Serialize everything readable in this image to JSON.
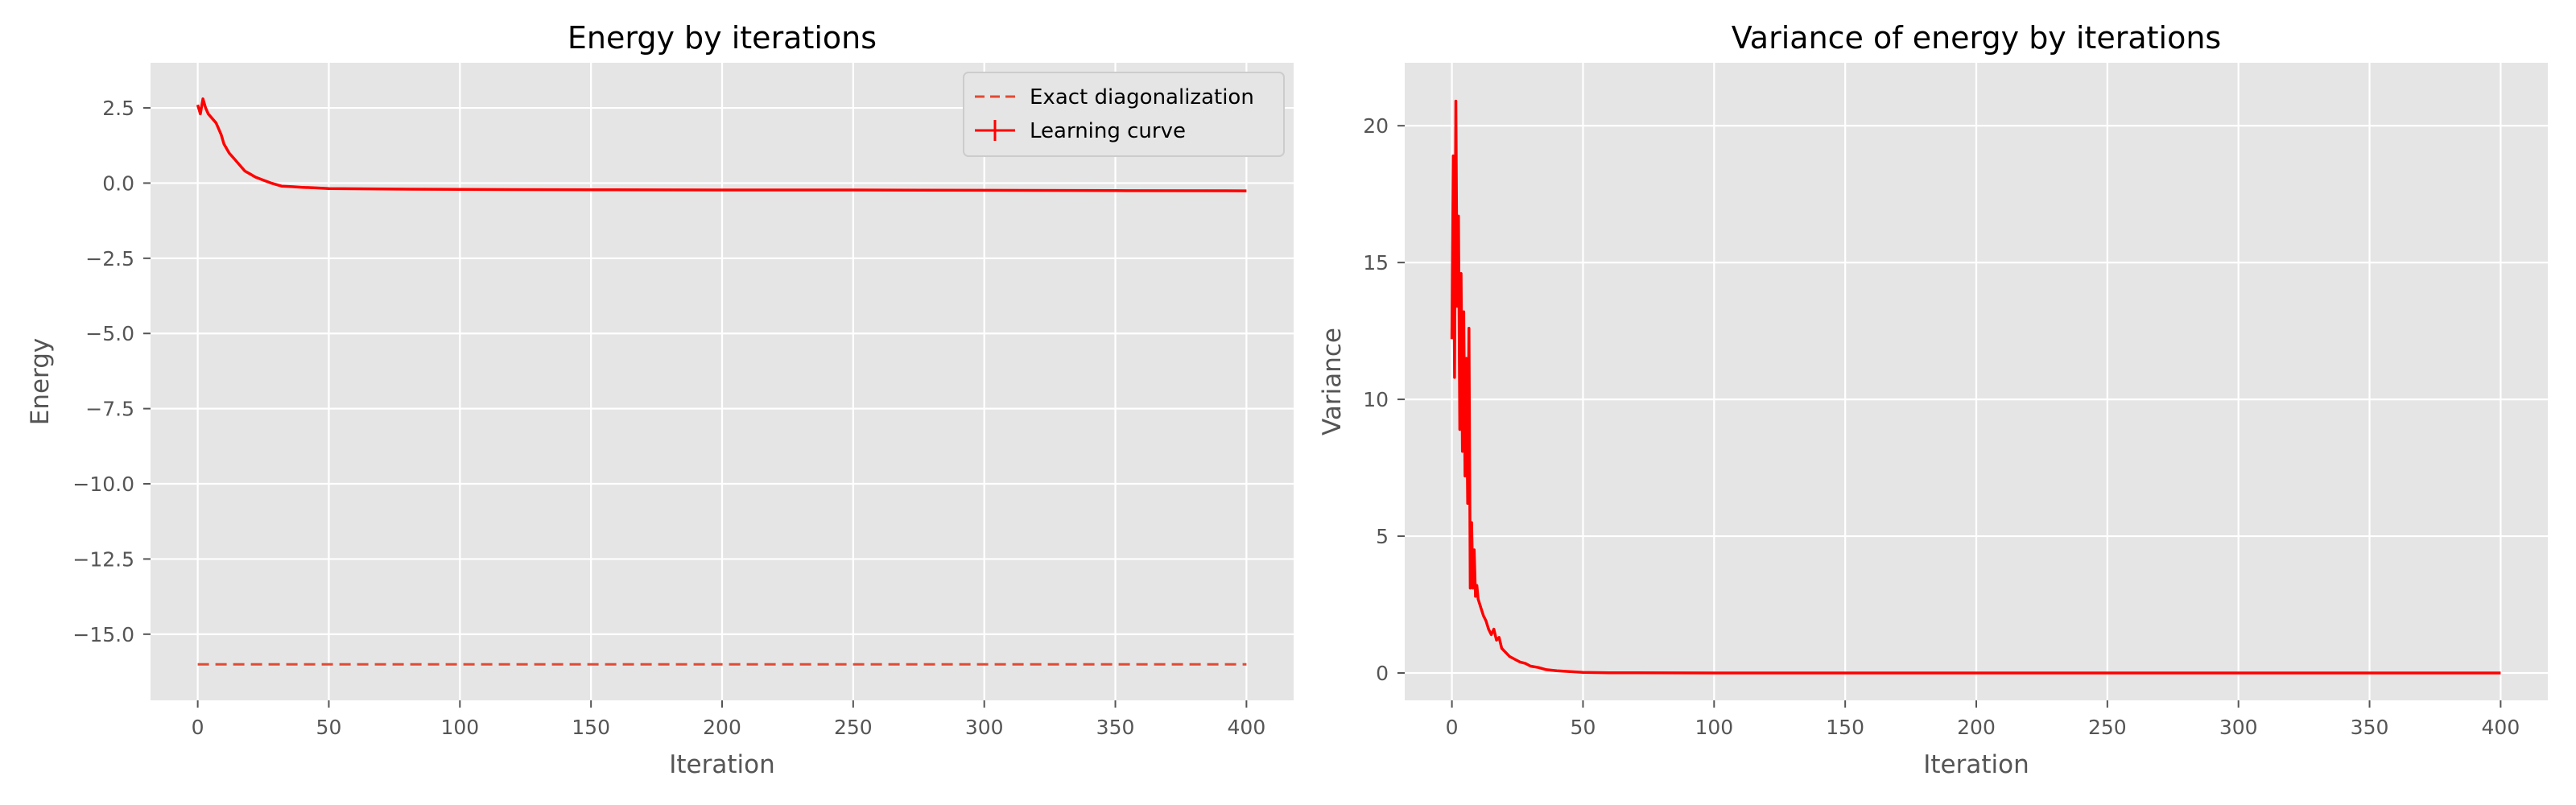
{
  "chart_data": [
    {
      "type": "line",
      "title": "Energy by iterations",
      "xlabel": "Iteration",
      "ylabel": "Energy",
      "xlim": [
        -18,
        418
      ],
      "ylim": [
        -17.2,
        4.0
      ],
      "xticks": [
        0,
        50,
        100,
        150,
        200,
        250,
        300,
        350,
        400
      ],
      "xtick_labels": [
        "0",
        "50",
        "100",
        "150",
        "200",
        "250",
        "300",
        "350",
        "400"
      ],
      "yticks": [
        2.5,
        0.0,
        -2.5,
        -5.0,
        -7.5,
        -10.0,
        -12.5,
        -15.0
      ],
      "ytick_labels": [
        "2.5",
        "0.0",
        "−2.5",
        "−5.0",
        "−7.5",
        "−10.0",
        "−12.5",
        "−15.0"
      ],
      "grid": true,
      "legend": {
        "position": "top-right",
        "entries": [
          "Exact diagonalization",
          "Learning curve"
        ]
      },
      "series": [
        {
          "name": "Exact diagonalization",
          "style": "dashed",
          "color": "#e24a33",
          "x": [
            0,
            400
          ],
          "values": [
            -16.0,
            -16.0
          ]
        },
        {
          "name": "Learning curve",
          "style": "solid",
          "color": "#ff0000",
          "x": [
            0,
            1,
            2,
            3,
            4,
            5,
            6,
            7,
            8,
            9,
            10,
            12,
            14,
            16,
            18,
            20,
            22,
            25,
            28,
            32,
            36,
            40,
            45,
            50,
            60,
            75,
            100,
            150,
            200,
            250,
            300,
            350,
            400
          ],
          "values": [
            2.6,
            2.3,
            2.8,
            2.5,
            2.3,
            2.2,
            2.1,
            2.0,
            1.8,
            1.6,
            1.3,
            1.0,
            0.8,
            0.6,
            0.4,
            0.3,
            0.2,
            0.1,
            0.0,
            -0.1,
            -0.12,
            -0.14,
            -0.16,
            -0.18,
            -0.19,
            -0.2,
            -0.21,
            -0.22,
            -0.23,
            -0.23,
            -0.24,
            -0.25,
            -0.26
          ]
        }
      ]
    },
    {
      "type": "line",
      "title": "Variance of energy by iterations",
      "xlabel": "Iteration",
      "ylabel": "Variance",
      "xlim": [
        -18,
        418
      ],
      "ylim": [
        -1.0,
        22.3
      ],
      "xticks": [
        0,
        50,
        100,
        150,
        200,
        250,
        300,
        350,
        400
      ],
      "xtick_labels": [
        "0",
        "50",
        "100",
        "150",
        "200",
        "250",
        "300",
        "350",
        "400"
      ],
      "yticks": [
        0,
        5,
        10,
        15,
        20
      ],
      "ytick_labels": [
        "0",
        "5",
        "10",
        "15",
        "20"
      ],
      "grid": true,
      "series": [
        {
          "name": "",
          "style": "solid",
          "color": "#ff0000",
          "x": [
            0,
            0.5,
            1,
            1.5,
            2,
            2.5,
            3,
            3.5,
            4,
            4.5,
            5,
            5.5,
            6,
            6.5,
            7,
            7.5,
            8,
            8.5,
            9,
            9.5,
            10,
            11,
            12,
            13,
            14,
            15,
            16,
            17,
            18,
            19,
            20,
            22,
            24,
            26,
            28,
            30,
            33,
            36,
            40,
            45,
            50,
            60,
            100,
            200,
            300,
            400
          ],
          "values": [
            12.2,
            18.9,
            10.8,
            20.9,
            13.4,
            16.7,
            8.9,
            14.6,
            8.1,
            13.2,
            7.2,
            11.5,
            6.2,
            12.6,
            3.1,
            5.5,
            3.1,
            4.5,
            2.8,
            3.2,
            2.7,
            2.4,
            2.1,
            1.9,
            1.6,
            1.4,
            1.6,
            1.2,
            1.3,
            0.9,
            0.8,
            0.6,
            0.5,
            0.4,
            0.35,
            0.25,
            0.2,
            0.12,
            0.08,
            0.05,
            0.02,
            0.01,
            0.0,
            0.0,
            0.0,
            0.0
          ]
        }
      ]
    }
  ]
}
